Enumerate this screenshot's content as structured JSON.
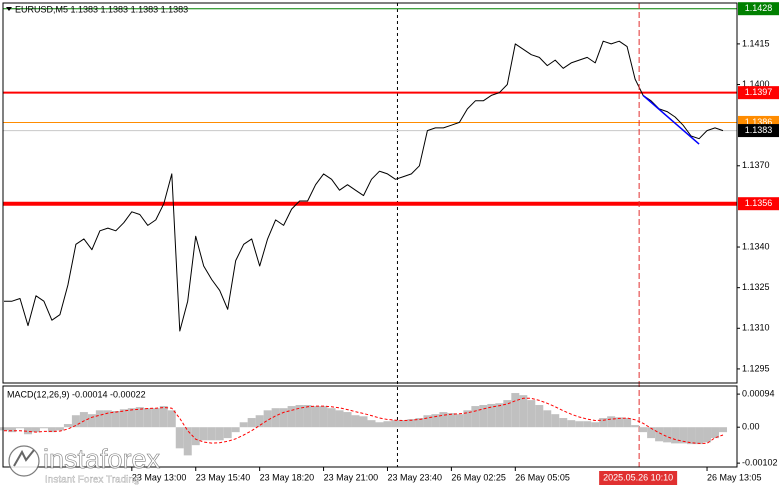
{
  "chart_data": [
    {
      "type": "line",
      "title": "EURUSD,M5  1.1383 1.1383 1.1383 1.1383",
      "x": [
        0,
        4,
        8,
        12,
        16,
        20,
        24,
        28,
        32,
        36,
        40,
        44,
        48,
        52,
        56,
        60,
        64,
        68,
        72,
        76,
        80,
        84,
        88,
        92,
        96,
        100,
        104,
        108,
        112,
        116,
        120,
        124,
        128,
        132,
        136,
        140,
        144,
        148,
        152,
        156,
        160,
        164,
        168,
        172,
        176,
        180,
        184,
        188,
        192,
        196,
        200,
        204,
        208,
        212,
        216,
        220,
        224,
        228,
        232,
        236,
        240,
        244,
        248,
        252,
        256,
        260,
        264,
        268,
        272,
        276,
        280,
        284,
        288,
        292,
        296,
        300,
        304,
        308,
        312,
        316,
        320,
        324,
        328,
        332,
        336,
        340,
        344,
        348,
        352,
        356,
        360
      ],
      "series": [
        {
          "color": "#000000",
          "values": [
            1.132,
            1.132,
            1.1321,
            1.1311,
            1.1322,
            1.132,
            1.1313,
            1.1315,
            1.1326,
            1.1341,
            1.1343,
            1.1339,
            1.1346,
            1.1347,
            1.1346,
            1.1349,
            1.1353,
            1.1352,
            1.1348,
            1.135,
            1.1356,
            1.1367,
            1.1309,
            1.132,
            1.1344,
            1.1333,
            1.1328,
            1.1324,
            1.1317,
            1.1335,
            1.1341,
            1.1343,
            1.1333,
            1.1343,
            1.135,
            1.1348,
            1.1354,
            1.1357,
            1.1357,
            1.1363,
            1.1367,
            1.1365,
            1.1361,
            1.1363,
            1.1361,
            1.1359,
            1.1365,
            1.1368,
            1.1367,
            1.1365,
            1.1366,
            1.1367,
            1.137,
            1.1383,
            1.1384,
            1.1384,
            1.1385,
            1.1386,
            1.1391,
            1.1394,
            1.1394,
            1.1396,
            1.1397,
            1.14,
            1.1415,
            1.1413,
            1.1411,
            1.141,
            1.1407,
            1.1409,
            1.1406,
            1.1408,
            1.1409,
            1.141,
            1.1408,
            1.1416,
            1.1415,
            1.1416,
            1.1414,
            1.1402,
            1.1396,
            1.1394,
            1.1391,
            1.139,
            1.1388,
            1.1385,
            1.1381,
            1.138,
            1.1383,
            1.1384,
            1.1383
          ]
        }
      ],
      "xlim": [
        -0.5,
        367
      ],
      "ylim": [
        1.12898,
        1.14301
      ],
      "yticks": [
        1.1295,
        {
          "value": 1.131,
          "label": "1.1310"
        },
        1.1325,
        {
          "value": 1.134,
          "label": "1.1340"
        },
        {
          "value": 1.137,
          "label": "1.1370"
        },
        {
          "value": 1.14,
          "label": "1.1400"
        },
        1.1415
      ],
      "xticks": [
        {
          "value": 64,
          "label": "23 May 13:00"
        },
        {
          "value": 96,
          "label": "23 May 15:40"
        },
        {
          "value": 128,
          "label": "23 May 18:20"
        },
        {
          "value": 160,
          "label": "23 May 21:00"
        },
        {
          "value": 192,
          "label": "23 May 23:40"
        },
        {
          "value": 224,
          "label": "26 May 02:25"
        },
        {
          "value": 256,
          "label": "26 May 05:05"
        },
        {
          "value": 352,
          "label": "26 May 13:05"
        }
      ],
      "levels": [
        {
          "value": 1.1428,
          "color": "#008000",
          "width": 1
        },
        {
          "value": 1.1397,
          "color": "#ff0000",
          "width": 2
        },
        {
          "value": 1.1386,
          "color": "#ff8c00",
          "width": 1
        },
        {
          "value": 1.1356,
          "color": "#ff0000",
          "width": 4
        }
      ],
      "last": {
        "value": 1.1383,
        "color": "#000000"
      },
      "trendline": {
        "color": "#0000ff",
        "x": [
          320,
          348
        ],
        "values": [
          1.1396,
          1.1378
        ]
      },
      "vlines": [
        {
          "x": 197,
          "color": "#000000"
        }
      ],
      "crosshair": {
        "x": 318,
        "label": "2025.05.26 10:10",
        "color": "#e03030"
      }
    },
    {
      "type": "bar",
      "title": "MACD(12,26,9) -0.00014 -0.00022",
      "x": [
        0,
        4,
        8,
        12,
        16,
        20,
        24,
        28,
        32,
        36,
        40,
        44,
        48,
        52,
        56,
        60,
        64,
        68,
        72,
        76,
        80,
        84,
        88,
        92,
        96,
        100,
        104,
        108,
        112,
        116,
        120,
        124,
        128,
        132,
        136,
        140,
        144,
        148,
        152,
        156,
        160,
        164,
        168,
        172,
        176,
        180,
        184,
        188,
        192,
        196,
        200,
        204,
        208,
        212,
        216,
        220,
        224,
        228,
        232,
        236,
        240,
        244,
        248,
        252,
        256,
        260,
        264,
        268,
        272,
        276,
        280,
        284,
        288,
        292,
        296,
        300,
        304,
        308,
        312,
        316,
        320,
        324,
        328,
        332,
        336,
        340,
        344,
        348,
        352,
        356,
        360
      ],
      "series": [
        {
          "color": "#c0c0c0",
          "values": [
            -9e-05,
            -0.00014,
            -3e-05,
            -0.0002,
            -0.00014,
            -3e-05,
            -0.00014,
            -9e-05,
            9e-05,
            0.00034,
            0.00043,
            0.00037,
            0.00048,
            0.00048,
            0.00046,
            0.00051,
            0.00054,
            0.00057,
            0.00054,
            0.00054,
            0.0006,
            0.00048,
            -0.0006,
            -0.0008,
            -0.00051,
            -0.00037,
            -0.00037,
            -0.00037,
            -0.00031,
            -0.00014,
            0.00014,
            0.00026,
            0.00034,
            0.00048,
            0.00054,
            0.00054,
            0.0006,
            0.00063,
            0.00063,
            0.0006,
            0.0006,
            0.00054,
            0.00048,
            0.00043,
            0.00034,
            0.00031,
            0.0002,
            0.00014,
            0.00017,
            0.0002,
            0.0002,
            0.00023,
            0.00026,
            0.00034,
            0.00037,
            0.00043,
            0.0004,
            0.00037,
            0.00048,
            0.0006,
            0.00063,
            0.00066,
            0.00068,
            0.00077,
            0.00097,
            0.00091,
            0.00077,
            0.00063,
            0.00048,
            0.00037,
            0.00026,
            0.0002,
            0.00017,
            0.00017,
            0.00014,
            0.00026,
            0.00031,
            0.00028,
            0.00026,
            6e-05,
            -0.00014,
            -0.00031,
            -0.0004,
            -0.00043,
            -0.00046,
            -0.00046,
            -0.00048,
            -0.00048,
            -0.00043,
            -0.00031,
            -0.00014
          ]
        },
        {
          "type": "line",
          "style": "dashed",
          "color": "#ff0000",
          "values": [
            -0.0001,
            -0.0001,
            -0.0001,
            -0.00012,
            -0.00014,
            -0.00012,
            -0.00012,
            -0.00011,
            -5e-05,
            5e-05,
            0.00018,
            0.00028,
            0.00034,
            0.0004,
            0.00043,
            0.00046,
            0.00049,
            0.00051,
            0.00053,
            0.00054,
            0.00056,
            0.00054,
            0.00025,
            -0.0001,
            -0.00034,
            -0.00042,
            -0.00045,
            -0.00044,
            -0.0004,
            -0.00033,
            -0.00022,
            -0.0001,
            5e-05,
            0.0002,
            0.00032,
            0.00042,
            0.00048,
            0.00054,
            0.00058,
            0.0006,
            0.0006,
            0.00058,
            0.00055,
            0.0005,
            0.00044,
            0.00039,
            0.00033,
            0.00026,
            0.00022,
            0.0002,
            0.00019,
            0.0002,
            0.00022,
            0.00026,
            0.0003,
            0.00034,
            0.00037,
            0.00038,
            0.00041,
            0.00046,
            0.00052,
            0.00057,
            0.00061,
            0.00066,
            0.00075,
            0.00082,
            0.00082,
            0.00076,
            0.00068,
            0.00058,
            0.00047,
            0.00037,
            0.00029,
            0.00023,
            0.00019,
            0.0002,
            0.00023,
            0.00025,
            0.00026,
            0.00021,
            0.00011,
            -3e-05,
            -0.00016,
            -0.00027,
            -0.00035,
            -0.0004,
            -0.00044,
            -0.00046,
            -0.00046,
            -0.0003,
            -0.00022
          ]
        }
      ],
      "xlim": [
        -0.5,
        367
      ],
      "ylim": [
        -0.00113,
        0.00117
      ],
      "yticks": [
        -0.00102,
        {
          "value": 0,
          "label": "0.00"
        },
        0.00094
      ]
    }
  ],
  "watermark": {
    "name": "instaforex",
    "tagline": "Instant Forex Trading"
  }
}
